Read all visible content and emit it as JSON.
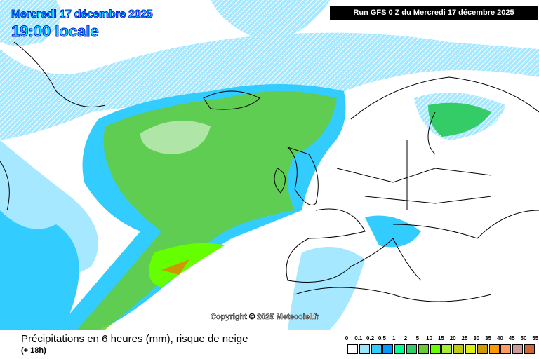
{
  "header": {
    "date": "Mercredi 17 décembre 2025",
    "time": "19:00 locale",
    "run": "Run GFS 0 Z du Mercredi 17 décembre 2025"
  },
  "map": {
    "copyright": "Copyright © 2025 Meteociel.fr"
  },
  "footer": {
    "title": "Précipitations en 6 heures (mm), risque de neige",
    "subtitle": "(+ 18h)"
  },
  "legend": {
    "labels": [
      "0",
      "0.1",
      "0.2",
      "0.5",
      "1",
      "2",
      "5",
      "10",
      "15",
      "20",
      "25",
      "30",
      "35",
      "40",
      "45",
      "50",
      "55"
    ],
    "colors": [
      "#ffffff",
      "#9ae6ff",
      "#33ccff",
      "#0099ff",
      "#00ff99",
      "#33cc66",
      "#66cc33",
      "#66ff00",
      "#a6ee33",
      "#bbcc11",
      "#ddee11",
      "#cc9900",
      "#ff9900",
      "#ff9966",
      "#cc9999",
      "#cc6633",
      "#cc3333"
    ]
  }
}
